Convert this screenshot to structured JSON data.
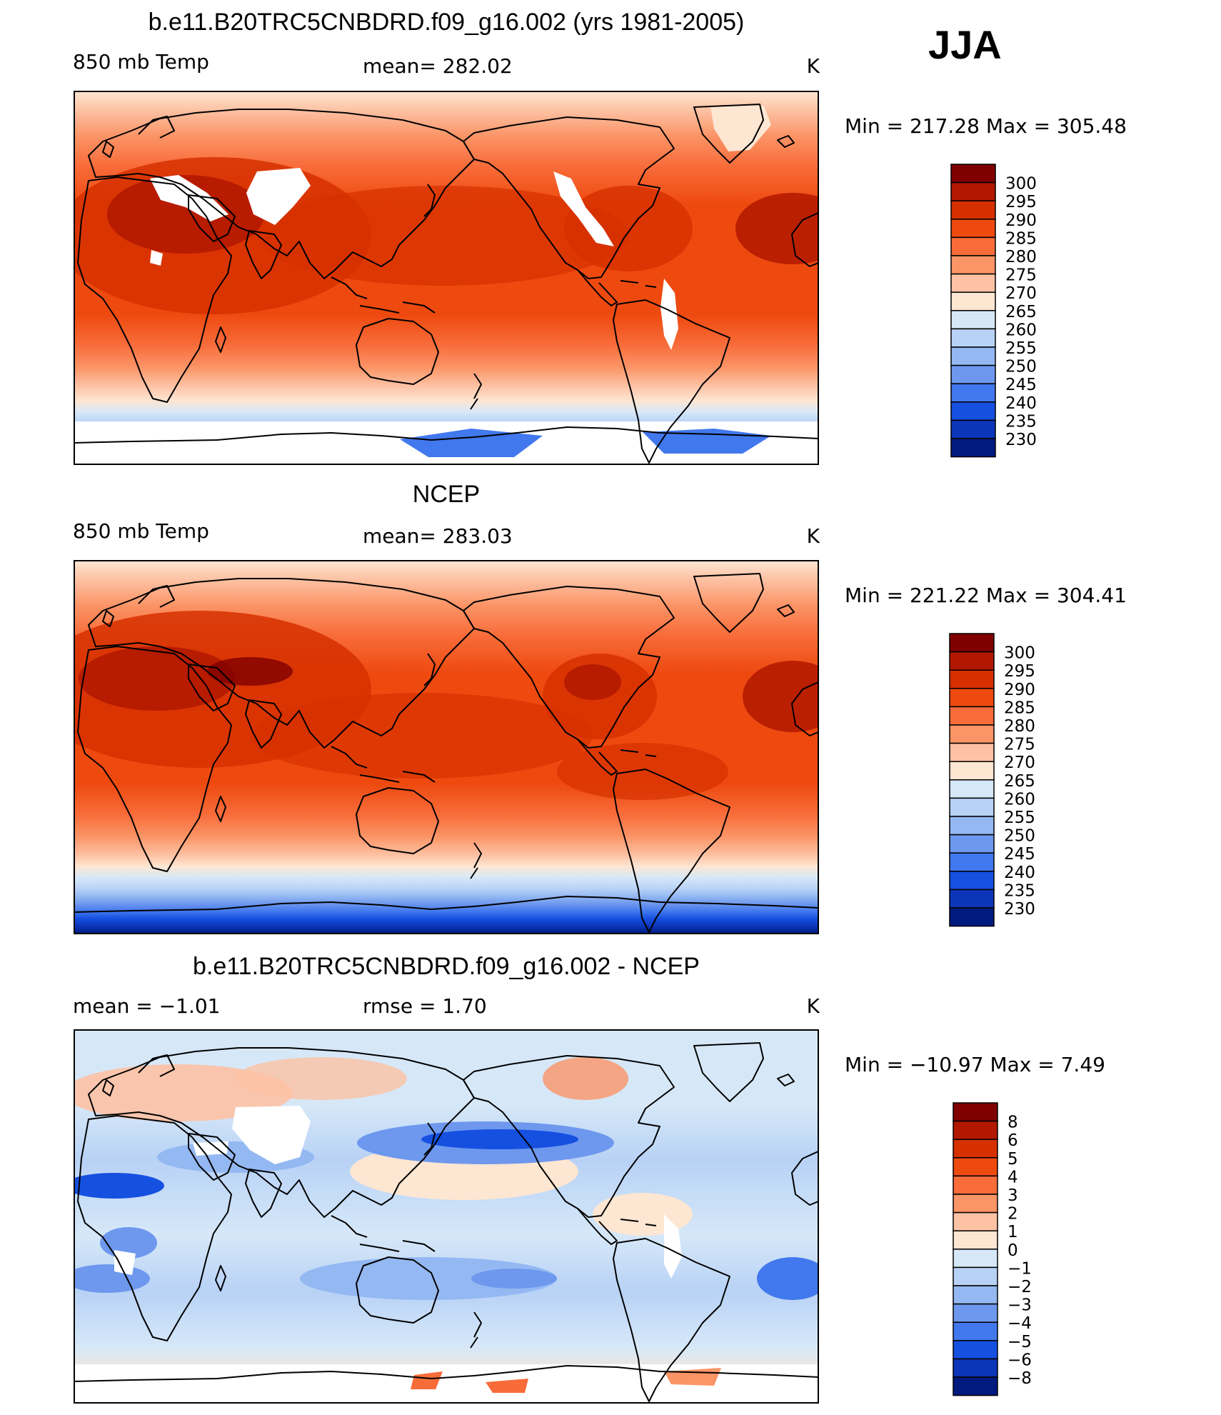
{
  "season": "JJA",
  "panels": [
    {
      "id": "model",
      "title": "b.e11.B20TRC5CNBDRD.f09_g16.002 (yrs 1981-2005)",
      "left_label": "850 mb Temp",
      "center_label": "mean=  282.02",
      "units": "K",
      "minmax": "Min  =  217.28  Max  =  305.48",
      "colorbar": {
        "labels": [
          "300",
          "295",
          "290",
          "285",
          "280",
          "275",
          "270",
          "265",
          "260",
          "255",
          "250",
          "245",
          "240",
          "235",
          "230"
        ],
        "colors": [
          "#800000",
          "#b21800",
          "#d63000",
          "#ee4a10",
          "#f86c3a",
          "#fb9466",
          "#fdc2a4",
          "#fde6d2",
          "#d6e8f8",
          "#b8d2f6",
          "#94b8f2",
          "#6e98ee",
          "#4278ee",
          "#1550e0",
          "#0c36b8",
          "#001a80"
        ]
      }
    },
    {
      "id": "obs",
      "title": "NCEP",
      "left_label": "850 mb Temp",
      "center_label": "mean=  283.03",
      "units": "K",
      "minmax": "Min  =  221.22  Max  =  304.41",
      "colorbar": {
        "labels": [
          "300",
          "295",
          "290",
          "285",
          "280",
          "275",
          "270",
          "265",
          "260",
          "255",
          "250",
          "245",
          "240",
          "235",
          "230"
        ],
        "colors": [
          "#800000",
          "#b21800",
          "#d63000",
          "#ee4a10",
          "#f86c3a",
          "#fb9466",
          "#fdc2a4",
          "#fde6d2",
          "#d6e8f8",
          "#b8d2f6",
          "#94b8f2",
          "#6e98ee",
          "#4278ee",
          "#1550e0",
          "#0c36b8",
          "#001a80"
        ]
      }
    },
    {
      "id": "diff",
      "title": "b.e11.B20TRC5CNBDRD.f09_g16.002 - NCEP",
      "left_label": "mean  =    −1.01",
      "center_label": "rmse  =     1.70",
      "units": "K",
      "minmax": "Min  =  −10.97  Max  =     7.49",
      "colorbar": {
        "labels": [
          "8",
          "6",
          "5",
          "4",
          "3",
          "2",
          "1",
          "0",
          "−1",
          "−2",
          "−3",
          "−4",
          "−5",
          "−6",
          "−8"
        ],
        "colors": [
          "#800000",
          "#b21800",
          "#d63000",
          "#ee4a10",
          "#f86c3a",
          "#fb9466",
          "#fdc2a4",
          "#fde6d2",
          "#d6e8f8",
          "#b8d2f6",
          "#94b8f2",
          "#6e98ee",
          "#4278ee",
          "#1550e0",
          "#0c36b8",
          "#001a80"
        ]
      }
    }
  ],
  "map_colors": {
    "white": "#ffffff",
    "land_outline": "#000000"
  }
}
